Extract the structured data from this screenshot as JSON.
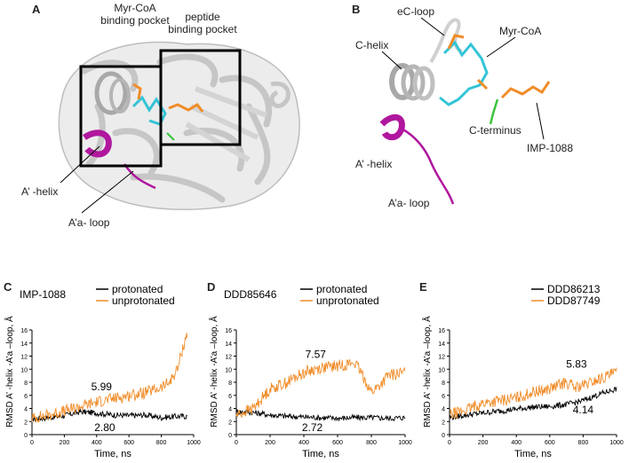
{
  "panel_a": {
    "letter": "A",
    "label_myr_pocket": [
      "Myr-CoA",
      "binding pocket"
    ],
    "label_peptide_pocket": [
      "peptide",
      "binding pocket"
    ],
    "label_a_helix": "A’ -helix",
    "label_aa_loop": "A’a- loop"
  },
  "panel_b": {
    "letter": "B",
    "label_ec_loop": "eC-loop",
    "label_c_helix": "C-helix",
    "label_myr_coa": "Myr-CoA",
    "label_c_terminus": "C-terminus",
    "label_imp": "IMP-1088",
    "label_a_helix": "A’ -helix",
    "label_aa_loop": "A’a- loop"
  },
  "colors": {
    "protein": "#c8c8c8",
    "helix_magenta": "#b0179e",
    "ligand_cyan": "#33c4d6",
    "ligand_orange": "#f0923a",
    "c_terminus_green": "#3cc43c",
    "series_black": "#000000",
    "series_orange": "#f08c28"
  },
  "chart_data": [
    {
      "type": "line",
      "panel": "C",
      "title": "IMP-1088",
      "xlabel": "Time, ns",
      "ylabel": "RMSD A’ -helix -A’a –loop, Å",
      "xlim": [
        0,
        1000
      ],
      "ylim": [
        0,
        16
      ],
      "xticks": [
        0,
        200,
        400,
        600,
        800,
        1000
      ],
      "yticks": [
        0,
        2,
        4,
        6,
        8,
        10,
        12,
        14,
        16
      ],
      "legend": "top-right",
      "annotations": [
        {
          "text": "5.99",
          "x": 430,
          "y": 7.3
        },
        {
          "text": "2.80",
          "x": 450,
          "y": 1.1
        }
      ],
      "series": [
        {
          "name": "protonated",
          "color": "#000000",
          "x": [
            0,
            100,
            200,
            300,
            400,
            500,
            600,
            700,
            800,
            900,
            960
          ],
          "y": [
            2.4,
            2.6,
            2.9,
            3.5,
            3.3,
            3.0,
            2.9,
            3.0,
            2.6,
            2.8,
            2.8
          ]
        },
        {
          "name": "unprotonated",
          "color": "#f08c28",
          "x": [
            0,
            100,
            200,
            300,
            400,
            500,
            600,
            700,
            800,
            850,
            900,
            930,
            960
          ],
          "y": [
            2.5,
            3.0,
            3.6,
            4.3,
            5.0,
            5.5,
            6.0,
            6.4,
            7.2,
            8.0,
            10.0,
            13.0,
            15.5
          ]
        }
      ]
    },
    {
      "type": "line",
      "panel": "D",
      "title": "DDD85646",
      "xlabel": "Time, ns",
      "ylabel": "RMSD A’ -helix -A’a –loop, Å",
      "xlim": [
        0,
        1000
      ],
      "ylim": [
        0,
        16
      ],
      "xticks": [
        0,
        200,
        400,
        600,
        800,
        1000
      ],
      "yticks": [
        0,
        2,
        4,
        6,
        8,
        10,
        12,
        14,
        16
      ],
      "legend": "top-right",
      "annotations": [
        {
          "text": "7.57",
          "x": 470,
          "y": 12.3
        },
        {
          "text": "2.72",
          "x": 450,
          "y": 1.1
        }
      ],
      "series": [
        {
          "name": "protonated",
          "color": "#000000",
          "x": [
            0,
            100,
            200,
            300,
            400,
            500,
            600,
            700,
            800,
            900,
            1000
          ],
          "y": [
            3.5,
            3.4,
            3.0,
            2.8,
            2.7,
            2.6,
            2.5,
            2.6,
            2.6,
            2.5,
            2.6
          ]
        },
        {
          "name": "unprotonated",
          "color": "#f08c28",
          "x": [
            0,
            100,
            150,
            200,
            300,
            400,
            500,
            600,
            700,
            750,
            800,
            850,
            900,
            1000
          ],
          "y": [
            3.0,
            4.0,
            5.5,
            7.0,
            8.0,
            9.5,
            10.2,
            10.5,
            11.0,
            9.0,
            6.5,
            7.5,
            9.0,
            9.5
          ]
        }
      ]
    },
    {
      "type": "line",
      "panel": "E",
      "title": "",
      "xlabel": "Time, ns",
      "ylabel": "RMSD A’ -helix -A’a –loop, Å",
      "xlim": [
        0,
        1000
      ],
      "ylim": [
        0,
        16
      ],
      "xticks": [
        0,
        200,
        400,
        600,
        800,
        1000
      ],
      "yticks": [
        0,
        2,
        4,
        6,
        8,
        10,
        12,
        14,
        16
      ],
      "legend": "top-right",
      "annotations": [
        {
          "text": "5.83",
          "x": 760,
          "y": 10.8
        },
        {
          "text": "4.14",
          "x": 800,
          "y": 3.8
        }
      ],
      "series": [
        {
          "name": "DDD86213",
          "color": "#000000",
          "x": [
            0,
            100,
            200,
            300,
            400,
            500,
            600,
            700,
            800,
            900,
            1000
          ],
          "y": [
            2.6,
            3.0,
            3.3,
            3.6,
            3.9,
            4.2,
            4.3,
            4.6,
            5.2,
            6.2,
            7.0
          ]
        },
        {
          "name": "DDD87749",
          "color": "#f08c28",
          "x": [
            0,
            100,
            200,
            300,
            400,
            500,
            600,
            700,
            750,
            800,
            900,
            1000
          ],
          "y": [
            3.0,
            3.8,
            4.8,
            5.2,
            5.6,
            6.5,
            7.0,
            8.0,
            7.2,
            7.5,
            8.5,
            9.5
          ]
        }
      ]
    }
  ]
}
